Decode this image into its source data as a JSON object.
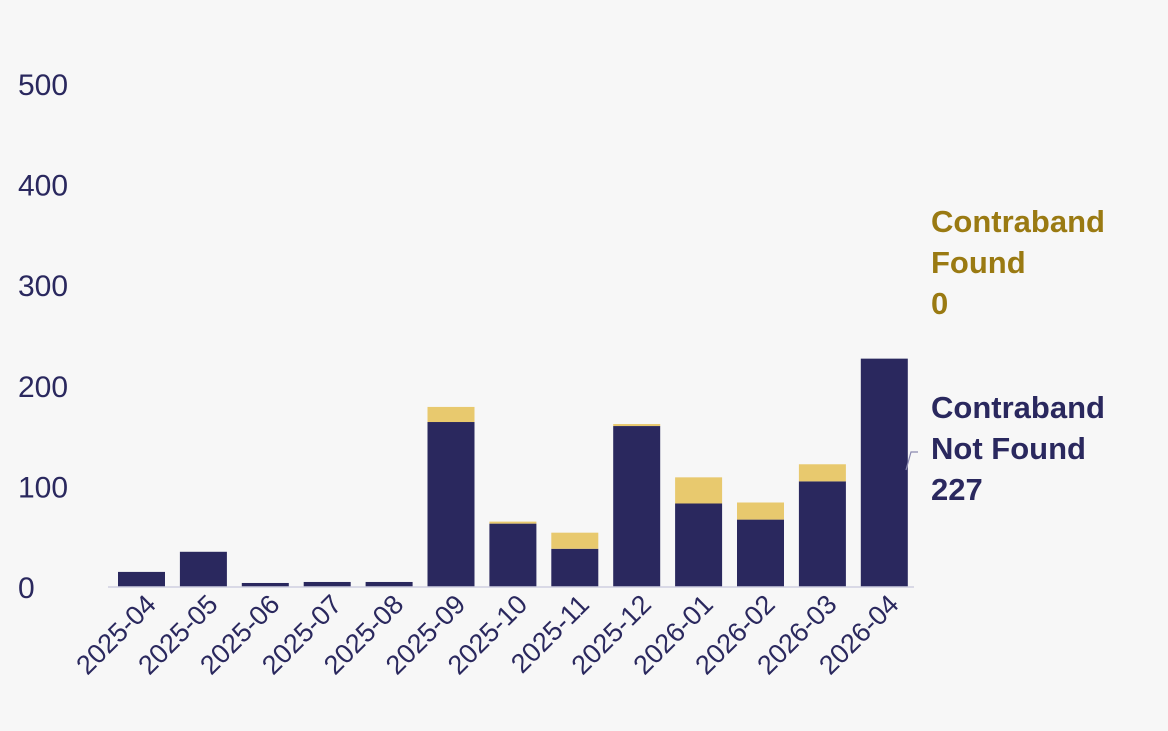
{
  "chart_data": {
    "type": "bar",
    "stacked": true,
    "categories": [
      "2025-04",
      "2025-05",
      "2025-06",
      "2025-07",
      "2025-08",
      "2025-09",
      "2025-10",
      "2025-11",
      "2025-12",
      "2026-01",
      "2026-02",
      "2026-03",
      "2026-04"
    ],
    "series": [
      {
        "name": "Contraband Not Found",
        "color": "#2a285e",
        "values": [
          15,
          35,
          4,
          5,
          5,
          164,
          63,
          38,
          160,
          83,
          67,
          105,
          227
        ]
      },
      {
        "name": "Contraband Found",
        "color": "#e8c96e",
        "values": [
          0,
          0,
          0,
          0,
          0,
          15,
          2,
          16,
          2,
          26,
          17,
          17,
          0
        ]
      }
    ],
    "yticks": [
      0,
      100,
      200,
      300,
      400,
      500
    ],
    "ylim": [
      0,
      500
    ],
    "grid": false,
    "legend": {
      "placement": "right",
      "items": [
        {
          "lines": [
            "Contraband",
            "Found",
            "0"
          ],
          "color": "#9a7a12"
        },
        {
          "lines": [
            "Contraband",
            "Not Found",
            "227"
          ],
          "color": "#2a285e"
        }
      ]
    }
  }
}
